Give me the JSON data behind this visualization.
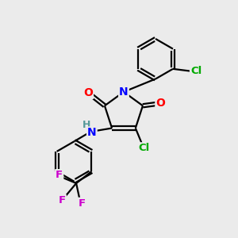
{
  "background_color": "#ebebeb",
  "atom_colors": {
    "C": "#000000",
    "N": "#0000FF",
    "O": "#FF0000",
    "Cl": "#00AA00",
    "F": "#CC00CC",
    "H": "#559999"
  },
  "bond_color": "#000000",
  "bond_lw": 1.6,
  "figsize": [
    3.0,
    3.0
  ],
  "dpi": 100
}
